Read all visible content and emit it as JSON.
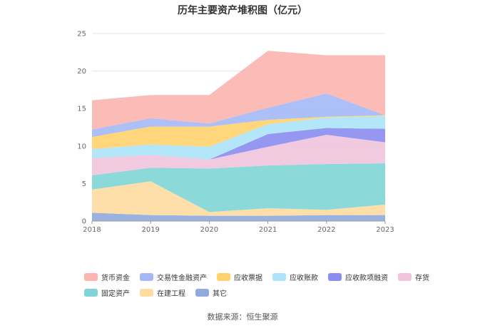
{
  "chart_data": {
    "type": "area",
    "stacked": true,
    "title": "历年主要资产堆积图（亿元）",
    "x": [
      "2018",
      "2019",
      "2020",
      "2021",
      "2022",
      "2023"
    ],
    "ylim": [
      0,
      25
    ],
    "yticks": [
      0,
      5,
      10,
      15,
      20,
      25
    ],
    "grid": true,
    "legend_position": "bottom",
    "series": [
      {
        "name": "其它",
        "color": "#8faadc",
        "values": [
          1.1,
          0.8,
          0.7,
          0.7,
          0.8,
          0.8
        ]
      },
      {
        "name": "在建工程",
        "color": "#ffdca0",
        "values": [
          3.1,
          4.5,
          0.5,
          1.0,
          0.7,
          1.4
        ]
      },
      {
        "name": "固定资产",
        "color": "#7fd5d5",
        "values": [
          1.9,
          1.8,
          5.8,
          5.7,
          6.1,
          5.5
        ]
      },
      {
        "name": "存货",
        "color": "#f0c4dd",
        "values": [
          2.3,
          1.7,
          1.2,
          2.5,
          3.9,
          2.8
        ]
      },
      {
        "name": "应收款项融资",
        "color": "#8a8cf0",
        "values": [
          0,
          0,
          0,
          1.7,
          0.9,
          1.8
        ]
      },
      {
        "name": "应收账款",
        "color": "#abe3f8",
        "values": [
          1.2,
          1.4,
          1.7,
          1.3,
          1.4,
          1.7
        ]
      },
      {
        "name": "应收票据",
        "color": "#ffd26e",
        "values": [
          1.6,
          2.4,
          2.7,
          0.6,
          0.1,
          0.1
        ]
      },
      {
        "name": "交易性金融资产",
        "color": "#a3b8f5",
        "values": [
          1.0,
          1.1,
          0.4,
          1.6,
          3.1,
          0
        ]
      },
      {
        "name": "货币资金",
        "color": "#fbb4ae",
        "values": [
          3.9,
          3.1,
          3.8,
          7.6,
          5.1,
          8.0
        ]
      }
    ],
    "legend_order": [
      "货币资金",
      "交易性金融资产",
      "应收票据",
      "应收账款",
      "应收款项融资",
      "存货",
      "固定资产",
      "在建工程",
      "其它"
    ]
  },
  "footer": {
    "source": "数据来源：恒生聚源"
  }
}
